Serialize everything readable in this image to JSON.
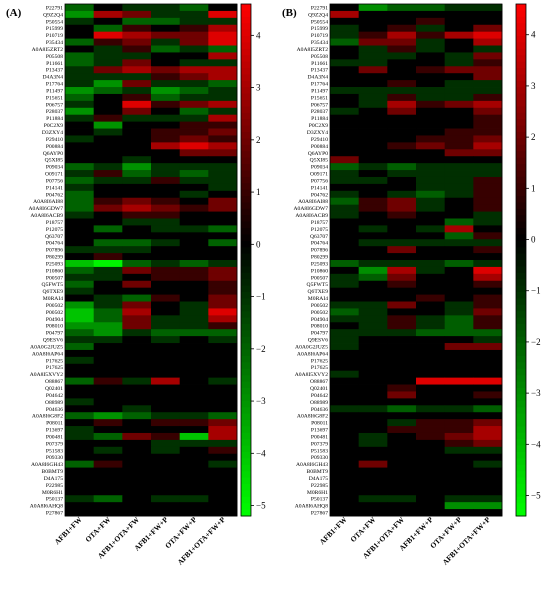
{
  "palette": {
    "min_color": "#00ff00",
    "mid_color": "#000000",
    "max_color": "#ff0000"
  },
  "chart_data": [
    {
      "type": "heatmap",
      "panel_label": "(A)",
      "value_range": [
        -5.2,
        4.6
      ],
      "colorbar_ticks": [
        4,
        3,
        2,
        1,
        0,
        -1,
        -2,
        -3,
        -4,
        -5
      ],
      "columns": [
        "AFB1+FW",
        "OTA+FW",
        "AFB1+OTA+FW",
        "AFB1+FW+P",
        "OTA+FW+P",
        "AFB1+OTA+FW+P"
      ],
      "rows": [
        "P22791",
        "Q9Z2Q4",
        "P50554",
        "P15999",
        "P10719",
        "P35434",
        "A0A8I5ZRT2",
        "P05508",
        "P11661",
        "P13437",
        "D4A3N4",
        "P17764",
        "P11497",
        "P15651",
        "P06757",
        "P28037",
        "P11884",
        "P0C2X9",
        "D3ZXY4",
        "P29410",
        "P00884",
        "Q6AYP0",
        "Q5XI85",
        "P09034",
        "O09171",
        "P07756",
        "P14141",
        "P04762",
        "A0A8I6AI88",
        "A0A8I6GDW7",
        "A0A8I6ACB9",
        "P18757",
        "P12075",
        "Q63707",
        "P04764",
        "P07896",
        "P80299",
        "P25093",
        "P10860",
        "P00507",
        "Q5FWT5",
        "Q6TXE9",
        "M0RAI4",
        "P00502",
        "P00502",
        "P04904",
        "P08010",
        "P04797",
        "Q9ESV6",
        "A0A0G2JUZ5",
        "A0A8I6AP64",
        "P17625",
        "P17625",
        "A0A8I5XVY2",
        "O88867",
        "Q02401",
        "P04642",
        "O88989",
        "P04636",
        "A0A8I6G8F2",
        "P08011",
        "P13697",
        "P00481",
        "P07379",
        "P51583",
        "P09330",
        "A0A8I6GH43",
        "B0BMT9",
        "D4A175",
        "P22985",
        "M0R6H1",
        "P50137",
        "A0A8I6AHQ8",
        "P27867"
      ],
      "values": [
        [
          -2,
          0,
          -1,
          -1,
          -2,
          0
        ],
        [
          -3,
          3,
          2,
          -1,
          -1,
          4
        ],
        [
          -1,
          0,
          -2,
          -2,
          -1,
          -1
        ],
        [
          0,
          -2,
          1,
          0,
          1,
          3
        ],
        [
          0,
          4,
          3,
          2,
          2,
          4
        ],
        [
          -2,
          1,
          2,
          -1,
          2,
          4
        ],
        [
          0,
          -1,
          1,
          -2,
          -1,
          -2
        ],
        [
          -2,
          -1,
          -1,
          0,
          0,
          3
        ],
        [
          -2,
          -1,
          2,
          0,
          -1,
          -1
        ],
        [
          -1,
          2,
          3,
          2,
          3,
          3
        ],
        [
          -1,
          -1,
          -1,
          1,
          2,
          3
        ],
        [
          -1,
          -3,
          2,
          -1,
          -1,
          -2
        ],
        [
          -3,
          -2,
          -1,
          -3,
          -2,
          -1
        ],
        [
          -2,
          0,
          1,
          -2,
          -1,
          -1
        ],
        [
          -1,
          0,
          4,
          1,
          2,
          3
        ],
        [
          -3,
          0,
          2,
          0,
          -2,
          -1
        ],
        [
          -1,
          1,
          -1,
          -1,
          -1,
          3
        ],
        [
          0,
          -3,
          0,
          0,
          1,
          1
        ],
        [
          0,
          -1,
          0,
          1,
          1,
          2
        ],
        [
          -1,
          0,
          0,
          1,
          2,
          1
        ],
        [
          0,
          0,
          0,
          3,
          4,
          3
        ],
        [
          0,
          0,
          0,
          0,
          2,
          2
        ],
        [
          0,
          0,
          -1,
          0,
          0,
          0
        ],
        [
          -2,
          -1,
          -3,
          -1,
          -1,
          -1
        ],
        [
          -1,
          1,
          -2,
          -1,
          -2,
          -1
        ],
        [
          -2,
          -1,
          -1,
          1,
          -1,
          -1
        ],
        [
          -1,
          0,
          0,
          0,
          0,
          -1
        ],
        [
          -2,
          0,
          0,
          0,
          -1,
          0
        ],
        [
          -2,
          1,
          2,
          1,
          0,
          2
        ],
        [
          -2,
          2,
          3,
          2,
          1,
          2
        ],
        [
          -1,
          0,
          1,
          1,
          0,
          0
        ],
        [
          0,
          0,
          -1,
          -1,
          0,
          0
        ],
        [
          0,
          -2,
          0,
          -1,
          -1,
          -2
        ],
        [
          0,
          0,
          0,
          0,
          0,
          0
        ],
        [
          0,
          -2,
          -2,
          -1,
          0,
          -2
        ],
        [
          -1,
          -1,
          -1,
          0,
          0,
          0
        ],
        [
          0,
          1,
          0,
          0,
          0,
          0
        ],
        [
          -4,
          -5,
          -2,
          -1,
          -2,
          -1
        ],
        [
          -2,
          -1,
          2,
          1,
          1,
          2
        ],
        [
          -1,
          -1,
          0,
          1,
          1,
          2
        ],
        [
          -2,
          0,
          2,
          0,
          0,
          1
        ],
        [
          -1,
          0,
          0,
          0,
          0,
          1
        ],
        [
          0,
          -1,
          -2,
          1,
          0,
          2
        ],
        [
          -3,
          -1,
          2,
          0,
          -1,
          2
        ],
        [
          -4,
          -2,
          3,
          0,
          -1,
          4
        ],
        [
          -4,
          -2,
          2,
          -1,
          -1,
          3
        ],
        [
          -3,
          -3,
          2,
          -1,
          -1,
          1
        ],
        [
          -2,
          -3,
          -1,
          -2,
          -2,
          -2
        ],
        [
          -1,
          -1,
          0,
          -1,
          0,
          -1
        ],
        [
          -2,
          0,
          0,
          0,
          0,
          0
        ],
        [
          0,
          0,
          0,
          0,
          0,
          0
        ],
        [
          -1,
          0,
          0,
          0,
          0,
          0
        ],
        [
          0,
          0,
          0,
          0,
          0,
          0
        ],
        [
          0,
          0,
          0,
          0,
          0,
          0
        ],
        [
          -2,
          1,
          -1,
          3,
          0,
          -1
        ],
        [
          0,
          0,
          0,
          0,
          0,
          0
        ],
        [
          0,
          0,
          0,
          0,
          0,
          0
        ],
        [
          -1,
          0,
          0,
          0,
          0,
          0
        ],
        [
          0,
          0,
          -1,
          0,
          0,
          0
        ],
        [
          -2,
          -3,
          -2,
          -1,
          -1,
          -2
        ],
        [
          0,
          1,
          0,
          1,
          1,
          2
        ],
        [
          -1,
          0,
          0,
          0,
          0,
          3
        ],
        [
          -1,
          -2,
          2,
          1,
          -4,
          3
        ],
        [
          0,
          0,
          0,
          -1,
          -1,
          -1
        ],
        [
          0,
          -1,
          0,
          -1,
          0,
          1
        ],
        [
          0,
          0,
          0,
          0,
          0,
          0
        ],
        [
          -2,
          1,
          0,
          0,
          0,
          -1
        ],
        [
          0,
          0,
          0,
          0,
          0,
          0
        ],
        [
          0,
          0,
          0,
          0,
          0,
          0
        ],
        [
          0,
          0,
          0,
          0,
          0,
          0
        ],
        [
          0,
          0,
          0,
          0,
          0,
          0
        ],
        [
          -1,
          -2,
          0,
          -1,
          -1,
          0
        ],
        [
          0,
          0,
          0,
          0,
          0,
          0
        ],
        [
          0,
          0,
          0,
          0,
          0,
          0
        ]
      ]
    },
    {
      "type": "heatmap",
      "panel_label": "(B)",
      "value_range": [
        -5.4,
        4.6
      ],
      "colorbar_ticks": [
        4,
        3,
        2,
        1,
        0,
        -1,
        -2,
        -3,
        -4,
        -5
      ],
      "columns": [
        "AFB1+FW",
        "OTA+FW",
        "AFB1+OTA+FW",
        "AFB1+FW+P",
        "OTA+FW+P",
        "AFB1+OTA+FW+P"
      ],
      "rows": [
        "P22791",
        "Q9Z2Q4",
        "P50554",
        "P15999",
        "P10719",
        "P35434",
        "A0A8I5ZRT2",
        "P05508",
        "P11661",
        "P13437",
        "D4A3N4",
        "P17764",
        "P11497",
        "P15651",
        "P06757",
        "P28037",
        "P11884",
        "P0C2X9",
        "D3ZXY4",
        "P29410",
        "P00884",
        "Q6AYP0",
        "Q5XI85",
        "P09034",
        "O09171",
        "P07756",
        "P14141",
        "P04762",
        "A0A8I6AI88",
        "A0A8I6GDW7",
        "A0A8I6ACB9",
        "P18757",
        "P12075",
        "Q63707",
        "P04764",
        "P07896",
        "P80299",
        "P25093",
        "P10860",
        "P00507",
        "Q5FWT5",
        "Q6TXE9",
        "M0RAI4",
        "P00502",
        "P00502",
        "P04904",
        "P08010",
        "P04797",
        "Q9ESV6",
        "A0A0G2JUZ5",
        "A0A8I6AP64",
        "P17625",
        "P17625",
        "A0A8I5XVY2",
        "O88867",
        "Q02401",
        "P04642",
        "O88989",
        "P04636",
        "A0A8I6G8F2",
        "P08011",
        "P13697",
        "P00481",
        "P07379",
        "P51583",
        "P09330",
        "A0A8I6GH43",
        "B0BMT9",
        "D4A175",
        "P22985",
        "M0R6H1",
        "P50137",
        "A0A8I6AHQ8",
        "P27867"
      ],
      "values": [
        [
          0,
          -3,
          -2,
          -2,
          -1,
          -1
        ],
        [
          3,
          0,
          0,
          0,
          0,
          0
        ],
        [
          0,
          0,
          0,
          1,
          0,
          0
        ],
        [
          -1,
          0,
          1,
          -1,
          0,
          2
        ],
        [
          -1,
          1,
          3,
          1,
          3,
          4
        ],
        [
          -2,
          2,
          2,
          -1,
          0,
          3
        ],
        [
          0,
          -1,
          1,
          -1,
          0,
          -1
        ],
        [
          0,
          -1,
          -1,
          0,
          -1,
          2
        ],
        [
          -1,
          -1,
          0,
          0,
          -1,
          1
        ],
        [
          0,
          2,
          0,
          1,
          2,
          2
        ],
        [
          0,
          0,
          0,
          0,
          0,
          2
        ],
        [
          0,
          0,
          1,
          0,
          -1,
          -1
        ],
        [
          -1,
          -1,
          -1,
          -1,
          -1,
          -1
        ],
        [
          0,
          -1,
          1,
          -1,
          -1,
          1
        ],
        [
          0,
          -1,
          3,
          1,
          2,
          3
        ],
        [
          -1,
          0,
          2,
          0,
          0,
          2
        ],
        [
          0,
          0,
          0,
          0,
          0,
          1
        ],
        [
          0,
          0,
          0,
          0,
          0,
          1
        ],
        [
          0,
          0,
          0,
          0,
          1,
          1
        ],
        [
          0,
          0,
          0,
          1,
          1,
          2
        ],
        [
          0,
          0,
          1,
          2,
          1,
          3
        ],
        [
          0,
          0,
          0,
          0,
          2,
          2
        ],
        [
          2,
          0,
          0,
          0,
          0,
          0
        ],
        [
          -2,
          -1,
          -2,
          -1,
          -1,
          -1
        ],
        [
          -1,
          0,
          -1,
          -1,
          -1,
          -1
        ],
        [
          -1,
          -1,
          0,
          -1,
          -1,
          1
        ],
        [
          0,
          0,
          0,
          -1,
          -1,
          1
        ],
        [
          -1,
          0,
          -1,
          -2,
          -1,
          1
        ],
        [
          -2,
          1,
          2,
          -1,
          0,
          1
        ],
        [
          -1,
          1,
          2,
          -1,
          0,
          1
        ],
        [
          -1,
          0,
          1,
          0,
          0,
          -1
        ],
        [
          0,
          0,
          0,
          0,
          -2,
          -1
        ],
        [
          0,
          -1,
          0,
          -1,
          3,
          0
        ],
        [
          0,
          0,
          0,
          0,
          -2,
          1
        ],
        [
          0,
          -1,
          -1,
          -1,
          -1,
          -1
        ],
        [
          0,
          0,
          2,
          0,
          0,
          1
        ],
        [
          0,
          0,
          0,
          0,
          0,
          0
        ],
        [
          -2,
          -1,
          -1,
          -1,
          -2,
          -1
        ],
        [
          0,
          -3,
          3,
          -1,
          0,
          4
        ],
        [
          -1,
          -2,
          2,
          0,
          0,
          3
        ],
        [
          -1,
          0,
          1,
          0,
          0,
          1
        ],
        [
          0,
          0,
          0,
          0,
          0,
          0
        ],
        [
          0,
          0,
          0,
          1,
          0,
          1
        ],
        [
          -1,
          -1,
          2,
          0,
          -1,
          1
        ],
        [
          -2,
          -1,
          0,
          0,
          -1,
          2
        ],
        [
          -1,
          -1,
          1,
          -1,
          -2,
          1
        ],
        [
          0,
          -1,
          1,
          -1,
          -2,
          1
        ],
        [
          -1,
          -1,
          -1,
          -2,
          -2,
          -2
        ],
        [
          -1,
          0,
          0,
          0,
          0,
          -1
        ],
        [
          -1,
          0,
          0,
          0,
          2,
          2
        ],
        [
          0,
          0,
          0,
          0,
          0,
          0
        ],
        [
          0,
          0,
          0,
          0,
          0,
          0
        ],
        [
          0,
          0,
          0,
          0,
          0,
          0
        ],
        [
          -1,
          0,
          0,
          0,
          0,
          0
        ],
        [
          0,
          0,
          0,
          4,
          4,
          4
        ],
        [
          0,
          0,
          1,
          0,
          0,
          0
        ],
        [
          0,
          0,
          2,
          0,
          0,
          1
        ],
        [
          0,
          0,
          0,
          0,
          0,
          0
        ],
        [
          -1,
          -1,
          -2,
          -1,
          -1,
          -2
        ],
        [
          0,
          0,
          0,
          0,
          0,
          0
        ],
        [
          0,
          0,
          -1,
          1,
          1,
          2
        ],
        [
          0,
          0,
          1,
          1,
          1,
          3
        ],
        [
          0,
          -1,
          0,
          1,
          2,
          3
        ],
        [
          0,
          -1,
          0,
          0,
          1,
          2
        ],
        [
          0,
          0,
          0,
          0,
          -1,
          -1
        ],
        [
          0,
          0,
          0,
          0,
          0,
          0
        ],
        [
          0,
          2,
          0,
          0,
          0,
          -1
        ],
        [
          0,
          0,
          0,
          0,
          0,
          0
        ],
        [
          0,
          0,
          0,
          0,
          0,
          0
        ],
        [
          0,
          0,
          0,
          0,
          0,
          0
        ],
        [
          0,
          0,
          0,
          0,
          0,
          0
        ],
        [
          0,
          -1,
          -1,
          0,
          -1,
          -1
        ],
        [
          0,
          0,
          0,
          0,
          -3,
          -3
        ],
        [
          0,
          0,
          0,
          0,
          0,
          0
        ]
      ]
    }
  ]
}
